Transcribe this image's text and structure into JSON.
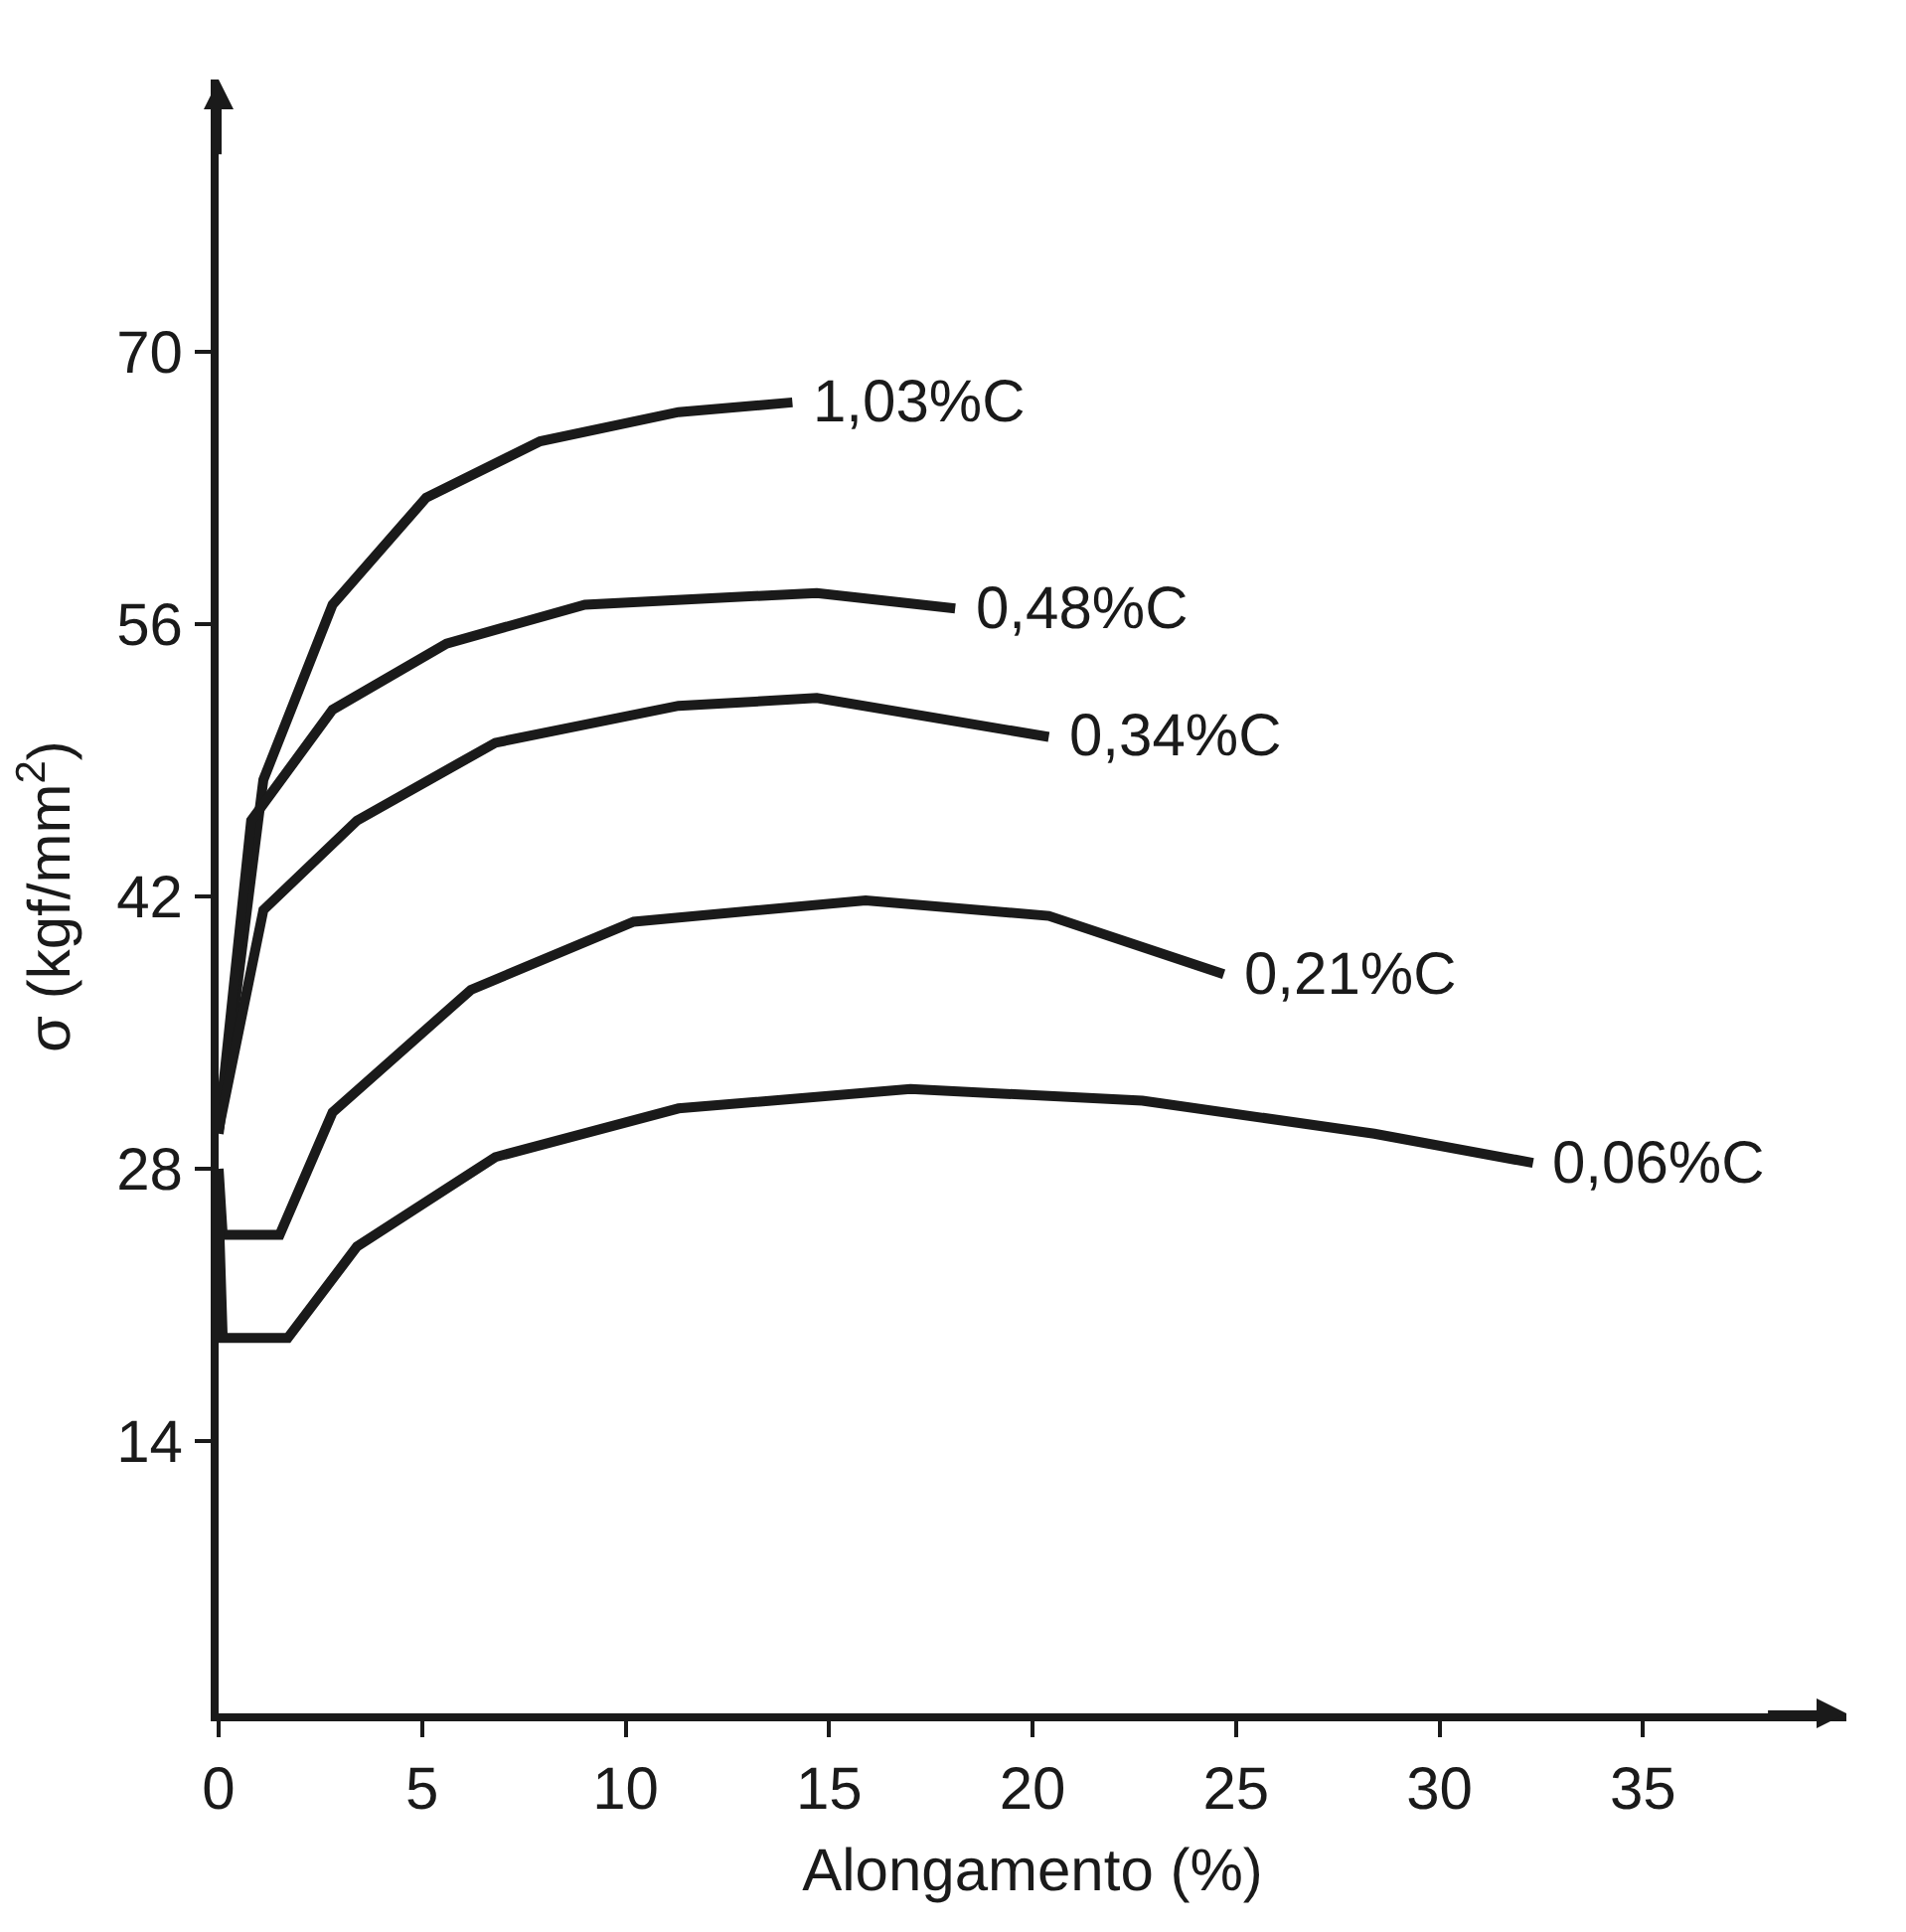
{
  "chart_data": {
    "type": "line",
    "xlabel": "Alongamento (%)",
    "ylabel": "σ (kgf/mm$^{2}$)",
    "xlim": [
      0,
      40
    ],
    "ylim": [
      0,
      84
    ],
    "xticks": [
      0,
      5,
      10,
      15,
      20,
      25,
      30,
      35
    ],
    "yticks": [
      14,
      28,
      42,
      56,
      70
    ],
    "marker": "none",
    "line_style": "solid",
    "series": [
      {
        "name": "1,03%C",
        "color": "#1a1a1a",
        "x": [
          0,
          1.1,
          2.8,
          5.1,
          7.9,
          11.3,
          14.1
        ],
        "values": [
          29.8,
          48,
          57,
          62.5,
          65.4,
          66.9,
          67.4
        ]
      },
      {
        "name": "0,48%C",
        "color": "#1a1a1a",
        "x": [
          0,
          0.8,
          2.8,
          5.6,
          9,
          14.7,
          18.1
        ],
        "values": [
          30,
          45.9,
          51.6,
          55,
          57,
          57.6,
          56.8
        ]
      },
      {
        "name": "0,34%C",
        "color": "#1a1a1a",
        "x": [
          0,
          1.1,
          3.4,
          6.8,
          11.3,
          14.7,
          20.4
        ],
        "values": [
          30,
          41.3,
          45.9,
          49.9,
          51.8,
          52.2,
          50.2
        ]
      },
      {
        "name": "0,21%C",
        "color": "#1a1a1a",
        "x": [
          0,
          0.1,
          1.5,
          2.8,
          6.2,
          10.2,
          15.9,
          20.4,
          24.7
        ],
        "values": [
          28,
          24.6,
          24.6,
          30.9,
          37.2,
          40.7,
          41.8,
          41,
          38
        ]
      },
      {
        "name": "0,06%C",
        "color": "#1a1a1a",
        "x": [
          0,
          0.1,
          1.7,
          3.4,
          6.8,
          11.3,
          17,
          22.7,
          28.4,
          32.3
        ],
        "values": [
          26,
          19.3,
          19.3,
          24,
          28.6,
          31.1,
          32.1,
          31.5,
          29.8,
          28.3
        ]
      }
    ]
  }
}
